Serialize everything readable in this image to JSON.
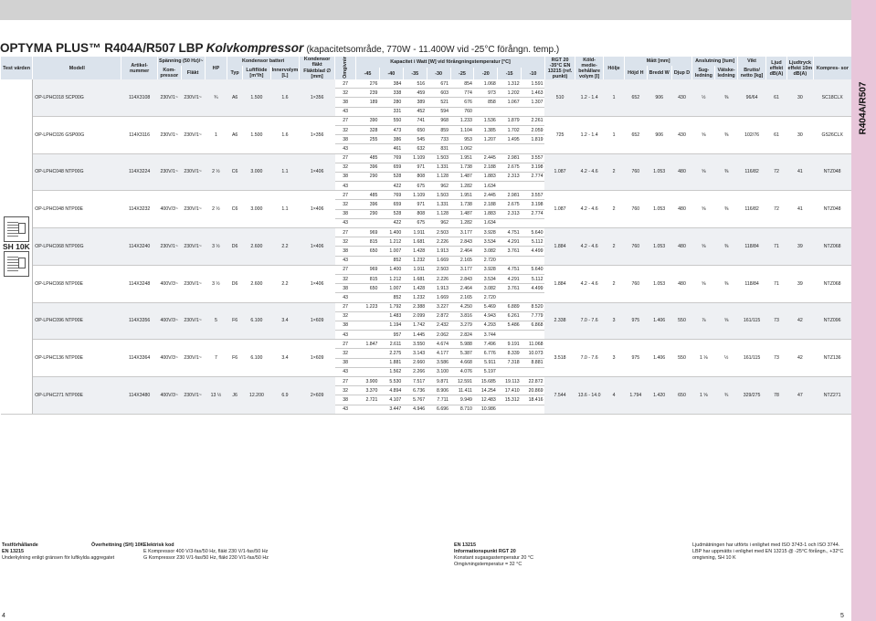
{
  "side_label": "R404A/R507",
  "title": {
    "part1": "OPTYMA PLUS™ R404A/R507",
    "part2": "LBP",
    "part3": "Kolvkompressor",
    "part4": "(kapacitetsområde, 770W - 11.400W vid -25°C förångn. temp.)"
  },
  "headers": {
    "test": "Test värden",
    "modell": "Modell",
    "artikel": "Artikel- nummer",
    "spanning": "Spänning (50 Hz)/~",
    "kompressor": "Kom- pressor",
    "flakt": "Fläkt",
    "hp": "HP",
    "kondensor_batteri": "Kondensor batteri",
    "typ": "Typ",
    "luftflode": "Luftflöde [m³/h]",
    "innervolym": "Innervolym [L]",
    "kondensor_flakt": "Kondensor fläkt",
    "flaktblad": "Fläktblad ∅ [mm]",
    "omgivning": "Omgivning °C",
    "kapacitet": "Kapacitet i Watt [W] vid förångningstemperatur [°C]",
    "temps": [
      "-45",
      "-40",
      "-35",
      "-30",
      "-25",
      "-20",
      "-15",
      "-10"
    ],
    "rgt": "RGT 20 -35°C EN 13215 (ref. punkt)",
    "koldmedie": "Köld- medie- behållare volym [l]",
    "matt": "Mått [mm]",
    "hojd": "Höjd H",
    "bredd": "Bredd W",
    "djup": "Djup D",
    "anslutning": "Anslutning [tum]",
    "sugledning": "Sug- ledning",
    "vatskeledning": "Vätske- ledning",
    "vikt": "Vikt",
    "brutto": "Brutto/ netto [kg]",
    "ljud": "Ljud effekt dB(A)",
    "ljudtryck": "Ljudtryck effekt 10m dB(A)",
    "komp": "Kompres- sor",
    "holje": "Hölje"
  },
  "sh10k": "SH 10K",
  "models": [
    {
      "modell": "OP-LPHC018 SCP00G",
      "art": "114X3108",
      "vk": "230V/1~",
      "vf": "230V/1~",
      "hp": "¾",
      "typ": "A6",
      "luft": "1.500",
      "inner": "1.6",
      "blad": "1×356",
      "rows": [
        [
          "27",
          "276",
          "384",
          "516",
          "671",
          "854",
          "1.068",
          "1.312",
          "1.591"
        ],
        [
          "32",
          "239",
          "338",
          "459",
          "603",
          "774",
          "973",
          "1.202",
          "1.463"
        ],
        [
          "38",
          "189",
          "280",
          "389",
          "521",
          "676",
          "858",
          "1.067",
          "1.307"
        ],
        [
          "43",
          "",
          "331",
          "452",
          "594",
          "760",
          "",
          "",
          ""
        ]
      ],
      "rgt": "510",
      "vol": "1.2 - 1.4",
      "holje": "1",
      "h": "652",
      "w": "906",
      "d": "430",
      "sug": "½",
      "vat": "⅜",
      "vikt": "96/64",
      "ljud": "61",
      "ljudt": "30",
      "komp": "SC18CLX"
    },
    {
      "modell": "OP-LPHC026 GSP00G",
      "art": "114X3116",
      "vk": "230V/1~",
      "vf": "230V/1~",
      "hp": "1",
      "typ": "A6",
      "luft": "1.500",
      "inner": "1.6",
      "blad": "1×356",
      "rows": [
        [
          "27",
          "390",
          "550",
          "741",
          "968",
          "1.233",
          "1.536",
          "1.879",
          "2.261"
        ],
        [
          "32",
          "328",
          "473",
          "650",
          "859",
          "1.104",
          "1.385",
          "1.702",
          "2.059"
        ],
        [
          "38",
          "255",
          "386",
          "545",
          "733",
          "953",
          "1.207",
          "1.495",
          "1.819"
        ],
        [
          "43",
          "",
          "461",
          "632",
          "831",
          "1.062",
          "",
          "",
          ""
        ]
      ],
      "rgt": "725",
      "vol": "1.2 - 1.4",
      "holje": "1",
      "h": "652",
      "w": "906",
      "d": "430",
      "sug": "⅝",
      "vat": "⅜",
      "vikt": "102/76",
      "ljud": "61",
      "ljudt": "30",
      "komp": "GS26CLX"
    },
    {
      "modell": "OP-LPHC048 NTP00G",
      "art": "114X3224",
      "vk": "230V/1~",
      "vf": "230V/1~",
      "hp": "2 ½",
      "typ": "C6",
      "luft": "3.000",
      "inner": "1.1",
      "blad": "1×406",
      "rows": [
        [
          "27",
          "485",
          "769",
          "1.109",
          "1.503",
          "1.951",
          "2.445",
          "2.981",
          "3.557"
        ],
        [
          "32",
          "396",
          "659",
          "971",
          "1.331",
          "1.738",
          "2.188",
          "2.675",
          "3.198"
        ],
        [
          "38",
          "290",
          "528",
          "808",
          "1.128",
          "1.487",
          "1.883",
          "2.313",
          "2.774"
        ],
        [
          "43",
          "",
          "422",
          "675",
          "962",
          "1.282",
          "1.634",
          "",
          ""
        ]
      ],
      "rgt": "1.087",
      "vol": "4.2 - 4.6",
      "holje": "2",
      "h": "760",
      "w": "1.053",
      "d": "480",
      "sug": "⅝",
      "vat": "⅜",
      "vikt": "116/82",
      "ljud": "72",
      "ljudt": "41",
      "komp": "NTZ048"
    },
    {
      "modell": "OP-LPHC048 NTP00E",
      "art": "114X3232",
      "vk": "400V/3~",
      "vf": "230V/1~",
      "hp": "2 ½",
      "typ": "C6",
      "luft": "3.000",
      "inner": "1.1",
      "blad": "1×406",
      "rows": [
        [
          "27",
          "485",
          "769",
          "1.109",
          "1.503",
          "1.951",
          "2.445",
          "2.981",
          "3.557"
        ],
        [
          "32",
          "396",
          "659",
          "971",
          "1.331",
          "1.738",
          "2.188",
          "2.675",
          "3.198"
        ],
        [
          "38",
          "290",
          "528",
          "808",
          "1.128",
          "1.487",
          "1.883",
          "2.313",
          "2.774"
        ],
        [
          "43",
          "",
          "422",
          "675",
          "962",
          "1.282",
          "1.634",
          "",
          ""
        ]
      ],
      "rgt": "1.087",
      "vol": "4.2 - 4.6",
      "holje": "2",
      "h": "760",
      "w": "1.053",
      "d": "480",
      "sug": "⅝",
      "vat": "⅜",
      "vikt": "116/82",
      "ljud": "72",
      "ljudt": "41",
      "komp": "NTZ048"
    },
    {
      "modell": "OP-LPHC068 NTP00G",
      "art": "114X3240",
      "vk": "230V/1~",
      "vf": "230V/1~",
      "hp": "3 ½",
      "typ": "D6",
      "luft": "2.600",
      "inner": "2.2",
      "blad": "1×406",
      "rows": [
        [
          "27",
          "969",
          "1.400",
          "1.911",
          "2.503",
          "3.177",
          "3.928",
          "4.751",
          "5.640"
        ],
        [
          "32",
          "815",
          "1.212",
          "1.681",
          "2.226",
          "2.843",
          "3.534",
          "4.291",
          "5.112"
        ],
        [
          "38",
          "650",
          "1.007",
          "1.428",
          "1.913",
          "2.464",
          "3.082",
          "3.761",
          "4.499"
        ],
        [
          "43",
          "",
          "852",
          "1.232",
          "1.669",
          "2.165",
          "2.720",
          "",
          ""
        ]
      ],
      "rgt": "1.884",
      "vol": "4.2 - 4.6",
      "holje": "2",
      "h": "760",
      "w": "1.053",
      "d": "480",
      "sug": "⅝",
      "vat": "⅜",
      "vikt": "118/84",
      "ljud": "71",
      "ljudt": "39",
      "komp": "NTZ068"
    },
    {
      "modell": "OP-LPHC068 NTP00E",
      "art": "114X3248",
      "vk": "400V/3~",
      "vf": "230V/1~",
      "hp": "3 ½",
      "typ": "D6",
      "luft": "2.600",
      "inner": "2.2",
      "blad": "1×406",
      "rows": [
        [
          "27",
          "969",
          "1.400",
          "1.911",
          "2.503",
          "3.177",
          "3.928",
          "4.751",
          "5.640"
        ],
        [
          "32",
          "815",
          "1.212",
          "1.681",
          "2.226",
          "2.843",
          "3.534",
          "4.291",
          "5.112"
        ],
        [
          "38",
          "650",
          "1.007",
          "1.428",
          "1.913",
          "2.464",
          "3.082",
          "3.761",
          "4.499"
        ],
        [
          "43",
          "",
          "852",
          "1.232",
          "1.669",
          "2.165",
          "2.720",
          "",
          ""
        ]
      ],
      "rgt": "1.884",
      "vol": "4.2 - 4.6",
      "holje": "2",
      "h": "760",
      "w": "1.053",
      "d": "480",
      "sug": "⅝",
      "vat": "⅜",
      "vikt": "118/84",
      "ljud": "71",
      "ljudt": "39",
      "komp": "NTZ068"
    },
    {
      "modell": "OP-LPHC096 NTP00E",
      "art": "114X3356",
      "vk": "400V/3~",
      "vf": "230V/1~",
      "hp": "5",
      "typ": "F6",
      "luft": "6.100",
      "inner": "3.4",
      "blad": "1×609",
      "rows": [
        [
          "27",
          "1.223",
          "1.792",
          "2.388",
          "3.227",
          "4.250",
          "5.469",
          "6.889",
          "8.520"
        ],
        [
          "32",
          "",
          "1.483",
          "2.099",
          "2.872",
          "3.816",
          "4.943",
          "6.261",
          "7.779"
        ],
        [
          "38",
          "",
          "1.194",
          "1.742",
          "2.432",
          "3.279",
          "4.293",
          "5.486",
          "6.868"
        ],
        [
          "43",
          "",
          "957",
          "1.445",
          "2.062",
          "2.824",
          "3.744",
          "",
          ""
        ]
      ],
      "rgt": "2.338",
      "vol": "7.0 - 7.6",
      "holje": "3",
      "h": "975",
      "w": "1.406",
      "d": "550",
      "sug": "⅞",
      "vat": "⅝",
      "vikt": "161/115",
      "ljud": "73",
      "ljudt": "42",
      "komp": "NTZ096"
    },
    {
      "modell": "OP-LPHC136 NTP00E",
      "art": "114X3364",
      "vk": "400V/3~",
      "vf": "230V/1~",
      "hp": "7",
      "typ": "F6",
      "luft": "6.100",
      "inner": "3.4",
      "blad": "1×609",
      "rows": [
        [
          "27",
          "1.847",
          "2.611",
          "3.550",
          "4.674",
          "5.988",
          "7.496",
          "9.191",
          "11.068"
        ],
        [
          "32",
          "",
          "2.275",
          "3.143",
          "4.177",
          "5.387",
          "6.776",
          "8.339",
          "10.073"
        ],
        [
          "38",
          "",
          "1.881",
          "2.660",
          "3.586",
          "4.668",
          "5.911",
          "7.318",
          "8.881"
        ],
        [
          "43",
          "",
          "1.562",
          "2.266",
          "3.100",
          "4.076",
          "5.197",
          "",
          ""
        ]
      ],
      "rgt": "3.518",
      "vol": "7.0 - 7.6",
      "holje": "3",
      "h": "975",
      "w": "1.406",
      "d": "550",
      "sug": "1 ⅛",
      "vat": "½",
      "vikt": "161/115",
      "ljud": "73",
      "ljudt": "42",
      "komp": "NTZ136"
    },
    {
      "modell": "OP-LPHC271 NTP00E",
      "art": "114X3480",
      "vk": "400V/3~",
      "vf": "230V/1~",
      "hp": "13 ½",
      "typ": "J6",
      "luft": "12.200",
      "inner": "6.9",
      "blad": "2×609",
      "rows": [
        [
          "27",
          "3.900",
          "5.530",
          "7.517",
          "9.871",
          "12.591",
          "15.685",
          "19.113",
          "22.872"
        ],
        [
          "32",
          "3.370",
          "4.894",
          "6.736",
          "8.906",
          "11.411",
          "14.254",
          "17.410",
          "20.869"
        ],
        [
          "38",
          "2.721",
          "4.107",
          "5.767",
          "7.711",
          "9.949",
          "12.483",
          "15.312",
          "18.416"
        ],
        [
          "43",
          "",
          "3.447",
          "4.946",
          "6.696",
          "8.710",
          "10.986",
          "",
          ""
        ]
      ],
      "rgt": "7.544",
      "vol": "13.6 - 14.0",
      "holje": "4",
      "h": "1.794",
      "w": "1.420",
      "d": "650",
      "sug": "1 ⅝",
      "vat": "¾",
      "vikt": "329/275",
      "ljud": "78",
      "ljudt": "47",
      "komp": "NTZ271"
    }
  ],
  "footer": {
    "c1": [
      "Testförhållande",
      "EN 13215",
      "Underkylning enligt gränsen för luftkylda aggregatet"
    ],
    "c2": [
      "Överhettning (SH) 10K"
    ],
    "c3": [
      "Elektrisk kod",
      "E  Kompressor 400 V/3-fas/50 Hz, fläkt 230 V/1-fas/50 Hz",
      "G  Kompressor 230 V/1-fas/50 Hz, fläkt 230 V/1-fas/50 Hz"
    ],
    "c4": [
      "EN 13215",
      "Informationspunkt RGT 20",
      "Konstant sugasgastemperatur 20 °C",
      "Omgivningstemperatur = 32 °C"
    ],
    "c5": [
      "Ljudmätningen har utförts i enlighet med ISO 3743-1 och ISO 3744.",
      "LBP har uppmätts i enlighet med EN 13215 @ -25°C förångn., +32°C",
      "omgivning, SH 10 K"
    ]
  },
  "page_left": "4",
  "page_right": "5"
}
